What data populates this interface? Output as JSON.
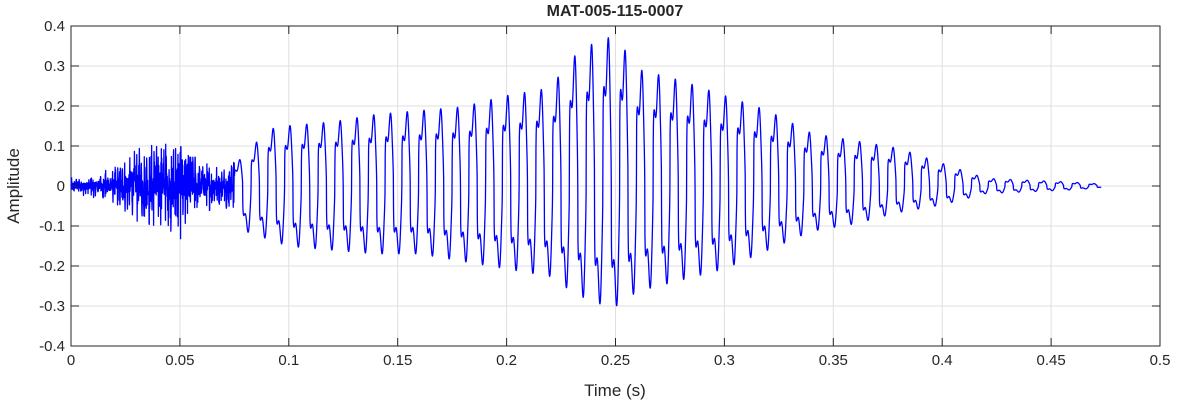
{
  "chart_data": {
    "type": "line",
    "title": "MAT-005-115-0007",
    "xlabel": "Time (s)",
    "ylabel": "Amplitude",
    "xlim": [
      0,
      0.5
    ],
    "ylim": [
      -0.4,
      0.4
    ],
    "grid": true,
    "xticks": [
      0,
      0.05,
      0.1,
      0.15,
      0.2,
      0.25,
      0.3,
      0.35,
      0.4,
      0.45,
      0.5
    ],
    "xtick_labels": [
      "0",
      "0.05",
      "0.1",
      "0.15",
      "0.2",
      "0.25",
      "0.3",
      "0.35",
      "0.4",
      "0.45",
      "0.5"
    ],
    "yticks": [
      -0.4,
      -0.3,
      -0.2,
      -0.1,
      0,
      0.1,
      0.2,
      0.3,
      0.4
    ],
    "ytick_labels": [
      "-0.4",
      "-0.3",
      "-0.2",
      "-0.1",
      "0",
      "0.1",
      "0.2",
      "0.3",
      "0.4"
    ],
    "series": [
      {
        "color": "#0000ff",
        "duration": 0.473,
        "envelope": {
          "t": [
            0,
            0.01,
            0.02,
            0.03,
            0.04,
            0.05,
            0.06,
            0.07,
            0.08,
            0.09,
            0.1,
            0.12,
            0.14,
            0.16,
            0.18,
            0.2,
            0.22,
            0.23,
            0.24,
            0.25,
            0.26,
            0.28,
            0.3,
            0.32,
            0.34,
            0.36,
            0.38,
            0.4,
            0.42,
            0.44,
            0.46,
            0.473
          ],
          "max": [
            0.02,
            0.03,
            0.05,
            0.09,
            0.12,
            0.1,
            0.06,
            0.04,
            0.08,
            0.15,
            0.16,
            0.17,
            0.19,
            0.2,
            0.21,
            0.24,
            0.26,
            0.34,
            0.38,
            0.4,
            0.31,
            0.28,
            0.24,
            0.2,
            0.14,
            0.12,
            0.1,
            0.06,
            0.02,
            0.015,
            0.01,
            0.005
          ],
          "min": [
            -0.02,
            -0.03,
            -0.05,
            -0.1,
            -0.12,
            -0.14,
            -0.07,
            -0.05,
            -0.12,
            -0.14,
            -0.16,
            -0.17,
            -0.18,
            -0.18,
            -0.2,
            -0.22,
            -0.24,
            -0.28,
            -0.31,
            -0.32,
            -0.28,
            -0.25,
            -0.22,
            -0.17,
            -0.12,
            -0.1,
            -0.07,
            -0.05,
            -0.02,
            -0.015,
            -0.01,
            -0.005
          ]
        },
        "noise_segment": [
          0,
          0.075
        ],
        "cycle_frequency_hz": 130
      }
    ]
  }
}
